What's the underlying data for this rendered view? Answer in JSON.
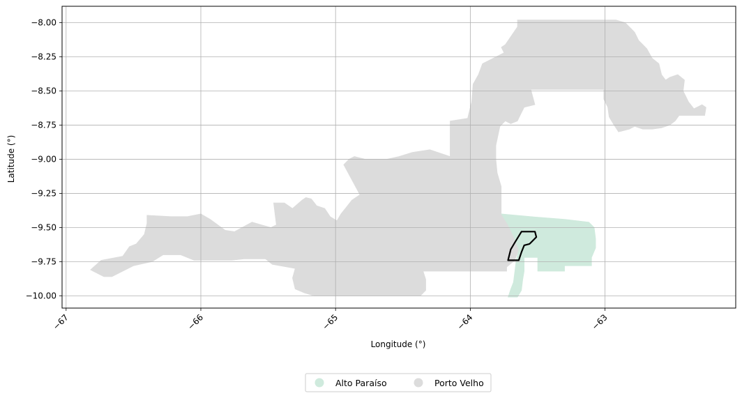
{
  "chart_data": {
    "type": "map",
    "xlabel": "Longitude (°)",
    "ylabel": "Latitude (°)",
    "xlim": [
      -67.03,
      -62.03
    ],
    "ylim": [
      -10.09,
      -7.88
    ],
    "grid": true,
    "x_ticks": [
      {
        "value": -67,
        "label": "−67"
      },
      {
        "value": -66,
        "label": "−66"
      },
      {
        "value": -65,
        "label": "−65"
      },
      {
        "value": -64,
        "label": "−64"
      },
      {
        "value": -63,
        "label": "−63"
      }
    ],
    "y_ticks": [
      {
        "value": -8.0,
        "label": "−8.00"
      },
      {
        "value": -8.25,
        "label": "−8.25"
      },
      {
        "value": -8.5,
        "label": "−8.50"
      },
      {
        "value": -8.75,
        "label": "−8.75"
      },
      {
        "value": -9.0,
        "label": "−9.00"
      },
      {
        "value": -9.25,
        "label": "−9.25"
      },
      {
        "value": -9.5,
        "label": "−9.50"
      },
      {
        "value": -9.75,
        "label": "−9.75"
      },
      {
        "value": -10.0,
        "label": "−10.00"
      }
    ],
    "legend": {
      "placement": "bottom-center",
      "entries": [
        {
          "label": "Alto Paraíso",
          "color": "#cfeadd"
        },
        {
          "label": "Porto Velho",
          "color": "#dcdcdc"
        }
      ]
    },
    "regions": [
      {
        "name": "Porto Velho",
        "color": "#dcdcdc",
        "polygons": [
          [
            [
              -66.82,
              -9.81
            ],
            [
              -66.74,
              -9.74
            ],
            [
              -66.58,
              -9.71
            ],
            [
              -66.53,
              -9.64
            ],
            [
              -66.48,
              -9.62
            ],
            [
              -66.42,
              -9.55
            ],
            [
              -66.4,
              -9.47
            ],
            [
              -66.4,
              -9.41
            ],
            [
              -66.22,
              -9.42
            ],
            [
              -66.1,
              -9.42
            ],
            [
              -66.0,
              -9.4
            ],
            [
              -65.93,
              -9.44
            ],
            [
              -65.82,
              -9.52
            ],
            [
              -65.75,
              -9.53
            ],
            [
              -65.62,
              -9.46
            ],
            [
              -65.55,
              -9.48
            ],
            [
              -65.48,
              -9.5
            ],
            [
              -65.44,
              -9.48
            ],
            [
              -65.46,
              -9.32
            ],
            [
              -65.38,
              -9.32
            ],
            [
              -65.32,
              -9.36
            ],
            [
              -65.25,
              -9.3
            ],
            [
              -65.22,
              -9.28
            ],
            [
              -65.18,
              -9.29
            ],
            [
              -65.14,
              -9.34
            ],
            [
              -65.08,
              -9.36
            ],
            [
              -65.04,
              -9.42
            ],
            [
              -64.99,
              -9.45
            ],
            [
              -64.96,
              -9.4
            ],
            [
              -64.92,
              -9.35
            ],
            [
              -64.88,
              -9.3
            ],
            [
              -64.82,
              -9.26
            ],
            [
              -64.94,
              -9.04
            ],
            [
              -64.9,
              -9.0
            ],
            [
              -64.86,
              -8.98
            ],
            [
              -64.78,
              -9.0
            ],
            [
              -64.62,
              -9.0
            ],
            [
              -64.53,
              -8.98
            ],
            [
              -64.43,
              -8.95
            ],
            [
              -64.3,
              -8.93
            ],
            [
              -64.15,
              -8.98
            ],
            [
              -64.15,
              -8.82
            ],
            [
              -64.15,
              -8.72
            ],
            [
              -64.02,
              -8.7
            ],
            [
              -63.99,
              -8.58
            ],
            [
              -63.98,
              -8.45
            ],
            [
              -63.94,
              -8.38
            ],
            [
              -63.91,
              -8.3
            ],
            [
              -63.83,
              -8.26
            ],
            [
              -63.75,
              -8.22
            ],
            [
              -63.77,
              -8.18
            ],
            [
              -63.74,
              -8.16
            ],
            [
              -63.65,
              -8.03
            ],
            [
              -63.65,
              -7.98
            ],
            [
              -63.32,
              -7.98
            ],
            [
              -63.01,
              -7.98
            ],
            [
              -62.92,
              -7.98
            ],
            [
              -62.85,
              -8.0
            ],
            [
              -62.78,
              -8.07
            ],
            [
              -62.75,
              -8.13
            ],
            [
              -62.69,
              -8.19
            ],
            [
              -62.65,
              -8.26
            ],
            [
              -62.6,
              -8.3
            ],
            [
              -62.58,
              -8.38
            ],
            [
              -62.55,
              -8.42
            ],
            [
              -62.52,
              -8.4
            ],
            [
              -62.46,
              -8.38
            ],
            [
              -62.41,
              -8.42
            ],
            [
              -62.42,
              -8.5
            ],
            [
              -62.38,
              -8.58
            ],
            [
              -62.34,
              -8.63
            ],
            [
              -62.28,
              -8.6
            ],
            [
              -62.25,
              -8.62
            ],
            [
              -62.26,
              -8.68
            ],
            [
              -62.45,
              -8.68
            ],
            [
              -62.48,
              -8.72
            ],
            [
              -62.52,
              -8.75
            ],
            [
              -62.58,
              -8.77
            ],
            [
              -62.65,
              -8.78
            ],
            [
              -62.72,
              -8.78
            ],
            [
              -62.78,
              -8.76
            ],
            [
              -62.82,
              -8.78
            ],
            [
              -62.9,
              -8.8
            ],
            [
              -62.94,
              -8.74
            ],
            [
              -62.97,
              -8.69
            ],
            [
              -62.98,
              -8.62
            ],
            [
              -63.01,
              -8.56
            ],
            [
              -63.01,
              -8.49
            ],
            [
              -63.55,
              -8.49
            ],
            [
              -63.52,
              -8.6
            ],
            [
              -63.6,
              -8.62
            ],
            [
              -63.62,
              -8.66
            ],
            [
              -63.65,
              -8.72
            ],
            [
              -63.7,
              -8.74
            ],
            [
              -63.74,
              -8.72
            ],
            [
              -63.78,
              -8.76
            ],
            [
              -63.81,
              -8.9
            ],
            [
              -63.81,
              -9.0
            ],
            [
              -63.8,
              -9.1
            ],
            [
              -63.77,
              -9.2
            ],
            [
              -63.77,
              -9.3
            ],
            [
              -63.77,
              -9.4
            ],
            [
              -63.72,
              -9.48
            ],
            [
              -63.68,
              -9.56
            ],
            [
              -63.64,
              -9.66
            ],
            [
              -63.67,
              -9.74
            ],
            [
              -63.73,
              -9.79
            ],
            [
              -63.73,
              -9.82
            ],
            [
              -64.35,
              -9.82
            ],
            [
              -64.33,
              -9.88
            ],
            [
              -64.33,
              -9.96
            ],
            [
              -64.37,
              -10.0
            ],
            [
              -65.16,
              -10.0
            ],
            [
              -65.23,
              -9.98
            ],
            [
              -65.3,
              -9.95
            ],
            [
              -65.32,
              -9.87
            ],
            [
              -65.3,
              -9.8
            ],
            [
              -65.47,
              -9.77
            ],
            [
              -65.52,
              -9.73
            ],
            [
              -65.68,
              -9.73
            ],
            [
              -65.77,
              -9.74
            ],
            [
              -66.05,
              -9.74
            ],
            [
              -66.15,
              -9.7
            ],
            [
              -66.28,
              -9.7
            ],
            [
              -66.36,
              -9.75
            ],
            [
              -66.5,
              -9.78
            ],
            [
              -66.66,
              -9.86
            ],
            [
              -66.72,
              -9.86
            ]
          ]
        ]
      },
      {
        "name": "Alto Paraíso",
        "color": "#cfeadd",
        "polygons": [
          [
            [
              -63.77,
              -9.4
            ],
            [
              -63.55,
              -9.42
            ],
            [
              -63.3,
              -9.44
            ],
            [
              -63.12,
              -9.46
            ],
            [
              -63.08,
              -9.5
            ],
            [
              -63.07,
              -9.58
            ],
            [
              -63.07,
              -9.65
            ],
            [
              -63.1,
              -9.72
            ],
            [
              -63.1,
              -9.78
            ],
            [
              -63.3,
              -9.78
            ],
            [
              -63.3,
              -9.82
            ],
            [
              -63.5,
              -9.82
            ],
            [
              -63.5,
              -9.72
            ],
            [
              -63.6,
              -9.72
            ],
            [
              -63.6,
              -9.82
            ],
            [
              -63.61,
              -9.88
            ],
            [
              -63.62,
              -9.96
            ],
            [
              -63.65,
              -10.01
            ],
            [
              -63.72,
              -10.01
            ],
            [
              -63.7,
              -9.95
            ],
            [
              -63.68,
              -9.9
            ],
            [
              -63.67,
              -9.82
            ],
            [
              -63.66,
              -9.74
            ],
            [
              -63.64,
              -9.66
            ],
            [
              -63.68,
              -9.56
            ],
            [
              -63.72,
              -9.48
            ]
          ]
        ]
      }
    ],
    "outline": {
      "stroke": "#000000",
      "polygon": [
        [
          -63.72,
          -9.74
        ],
        [
          -63.7,
          -9.66
        ],
        [
          -63.67,
          -9.61
        ],
        [
          -63.62,
          -9.53
        ],
        [
          -63.52,
          -9.53
        ],
        [
          -63.51,
          -9.57
        ],
        [
          -63.56,
          -9.62
        ],
        [
          -63.6,
          -9.63
        ],
        [
          -63.62,
          -9.68
        ],
        [
          -63.64,
          -9.74
        ]
      ]
    }
  }
}
